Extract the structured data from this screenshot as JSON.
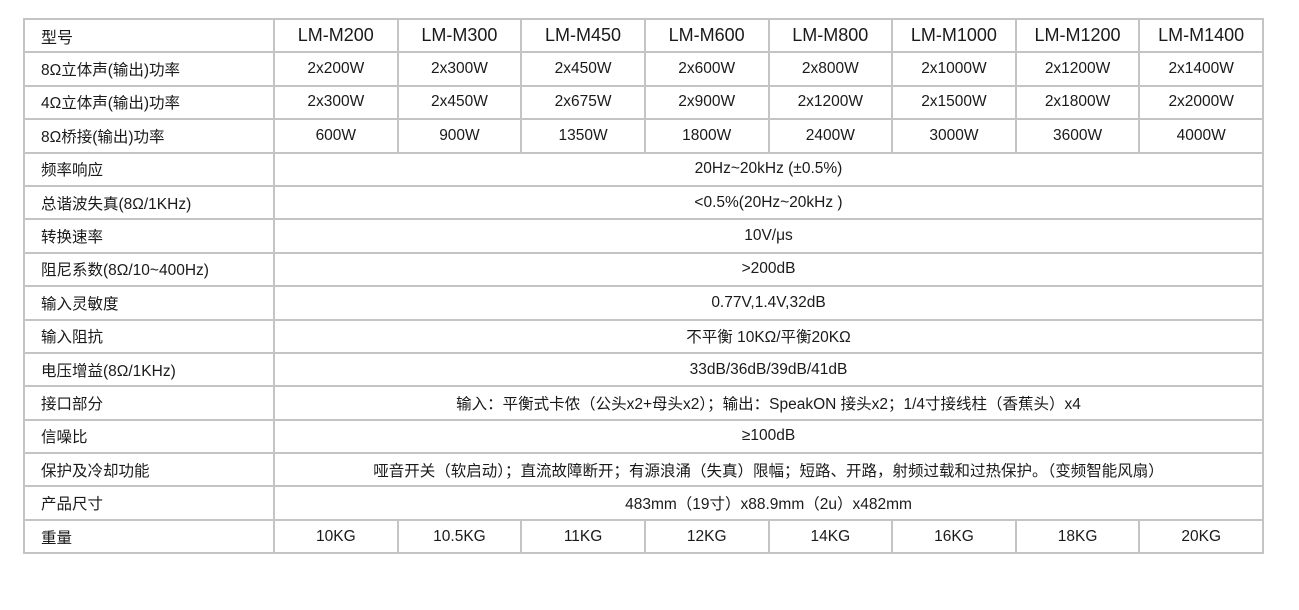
{
  "header": {
    "label": "型号",
    "models": [
      "LM-M200",
      "LM-M300",
      "LM-M450",
      "LM-M600",
      "LM-M800",
      "LM-M1000",
      "LM-M1200",
      "LM-M1400"
    ]
  },
  "per_model_rows": [
    {
      "label": "8Ω立体声(输出)功率",
      "values": [
        "2x200W",
        "2x300W",
        "2x450W",
        "2x600W",
        "2x800W",
        "2x1000W",
        "2x1200W",
        "2x1400W"
      ]
    },
    {
      "label": "4Ω立体声(输出)功率",
      "values": [
        "2x300W",
        "2x450W",
        "2x675W",
        "2x900W",
        "2x1200W",
        "2x1500W",
        "2x1800W",
        "2x2000W"
      ]
    },
    {
      "label": "8Ω桥接(输出)功率",
      "values": [
        "600W",
        "900W",
        "1350W",
        "1800W",
        "2400W",
        "3000W",
        "3600W",
        "4000W"
      ]
    }
  ],
  "shared_rows": [
    {
      "label": "频率响应",
      "value": "20Hz~20kHz (±0.5%)"
    },
    {
      "label": "总谐波失真(8Ω/1KHz)",
      "value": "<0.5%(20Hz~20kHz )"
    },
    {
      "label": "转换速率",
      "value": "10V/μs"
    },
    {
      "label": "阻尼系数(8Ω/10~400Hz)",
      "value": ">200dB"
    },
    {
      "label": "输入灵敏度",
      "value": "0.77V,1.4V,32dB"
    },
    {
      "label": "输入阻抗",
      "value": "不平衡 10KΩ/平衡20KΩ"
    },
    {
      "label": "电压增益(8Ω/1KHz)",
      "value": "33dB/36dB/39dB/41dB"
    },
    {
      "label": "接口部分",
      "value": "输入：平衡式卡侬（公头x2+母头x2）；输出：SpeakON 接头x2；1/4寸接线柱（香蕉头）x4"
    },
    {
      "label": "信噪比",
      "value": "≥100dB"
    },
    {
      "label": "保护及冷却功能",
      "value": "哑音开关（软启动）；直流故障断开；有源浪涌（失真）限幅；短路、开路，射频过载和过热保护。（变频智能风扇）"
    },
    {
      "label": "产品尺寸",
      "value": "483mm（19寸）x88.9mm（2u）x482mm"
    }
  ],
  "weight_row": {
    "label": "重量",
    "values": [
      "10KG",
      "10.5KG",
      "11KG",
      "12KG",
      "14KG",
      "16KG",
      "18KG",
      "20KG"
    ]
  }
}
